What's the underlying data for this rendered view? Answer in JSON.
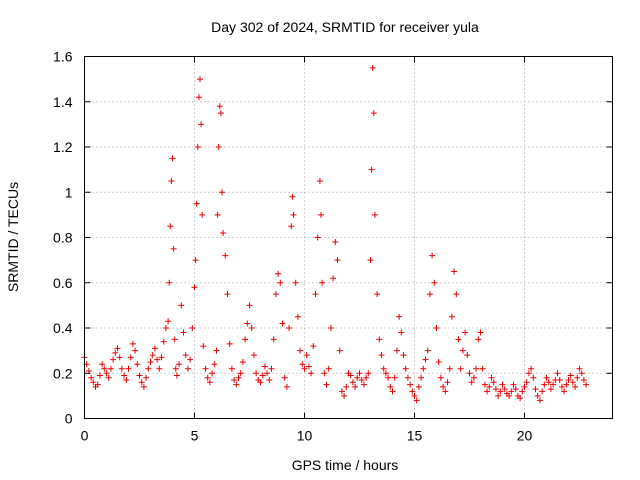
{
  "chart_data": {
    "type": "scatter",
    "title": "Day 302 of 2024, SRMTID for receiver yula",
    "xlabel": "GPS time / hours",
    "ylabel": "SRMTID / TECUs",
    "xlim": [
      0,
      24
    ],
    "ylim": [
      0,
      1.6
    ],
    "grid": true,
    "marker": "+",
    "series_color": "#ee0000",
    "x_ticks": [
      {
        "value": 0,
        "label": "0"
      },
      {
        "value": 5,
        "label": "5"
      },
      {
        "value": 10,
        "label": "10"
      },
      {
        "value": 15,
        "label": "15"
      },
      {
        "value": 20,
        "label": "20"
      }
    ],
    "y_ticks": [
      {
        "value": 0,
        "label": "0"
      },
      {
        "value": 0.2,
        "label": "0.2"
      },
      {
        "value": 0.4,
        "label": "0.4"
      },
      {
        "value": 0.6,
        "label": "0.6"
      },
      {
        "value": 0.8,
        "label": "0.8"
      },
      {
        "value": 1.0,
        "label": "1"
      },
      {
        "value": 1.2,
        "label": "1.2"
      },
      {
        "value": 1.4,
        "label": "1.4"
      },
      {
        "value": 1.6,
        "label": "1.6"
      }
    ],
    "series": [
      {
        "name": "SRMTID",
        "points": [
          [
            0.0,
            0.27
          ],
          [
            0.1,
            0.24
          ],
          [
            0.2,
            0.21
          ],
          [
            0.3,
            0.18
          ],
          [
            0.4,
            0.16
          ],
          [
            0.5,
            0.14
          ],
          [
            0.6,
            0.15
          ],
          [
            0.7,
            0.19
          ],
          [
            0.8,
            0.24
          ],
          [
            0.9,
            0.22
          ],
          [
            1.0,
            0.2
          ],
          [
            1.1,
            0.18
          ],
          [
            1.2,
            0.22
          ],
          [
            1.3,
            0.26
          ],
          [
            1.4,
            0.29
          ],
          [
            1.5,
            0.31
          ],
          [
            1.6,
            0.27
          ],
          [
            1.7,
            0.22
          ],
          [
            1.8,
            0.19
          ],
          [
            1.9,
            0.17
          ],
          [
            2.0,
            0.22
          ],
          [
            2.1,
            0.27
          ],
          [
            2.2,
            0.33
          ],
          [
            2.3,
            0.3
          ],
          [
            2.4,
            0.24
          ],
          [
            2.5,
            0.19
          ],
          [
            2.6,
            0.16
          ],
          [
            2.7,
            0.14
          ],
          [
            2.8,
            0.18
          ],
          [
            2.9,
            0.22
          ],
          [
            3.0,
            0.25
          ],
          [
            3.1,
            0.28
          ],
          [
            3.2,
            0.31
          ],
          [
            3.3,
            0.26
          ],
          [
            3.4,
            0.22
          ],
          [
            3.5,
            0.27
          ],
          [
            3.6,
            0.34
          ],
          [
            3.7,
            0.4
          ],
          [
            3.8,
            0.43
          ],
          [
            3.85,
            0.6
          ],
          [
            3.9,
            0.85
          ],
          [
            3.95,
            1.05
          ],
          [
            4.0,
            1.15
          ],
          [
            4.05,
            0.75
          ],
          [
            4.1,
            0.35
          ],
          [
            4.15,
            0.22
          ],
          [
            4.2,
            0.19
          ],
          [
            4.3,
            0.24
          ],
          [
            4.4,
            0.5
          ],
          [
            4.5,
            0.38
          ],
          [
            4.6,
            0.28
          ],
          [
            4.7,
            0.22
          ],
          [
            4.8,
            0.26
          ],
          [
            4.9,
            0.4
          ],
          [
            5.0,
            0.58
          ],
          [
            5.05,
            0.7
          ],
          [
            5.1,
            0.95
          ],
          [
            5.15,
            1.2
          ],
          [
            5.2,
            1.42
          ],
          [
            5.25,
            1.5
          ],
          [
            5.3,
            1.3
          ],
          [
            5.35,
            0.9
          ],
          [
            5.4,
            0.32
          ],
          [
            5.5,
            0.22
          ],
          [
            5.6,
            0.18
          ],
          [
            5.7,
            0.16
          ],
          [
            5.8,
            0.2
          ],
          [
            5.9,
            0.24
          ],
          [
            6.0,
            0.3
          ],
          [
            6.05,
            0.9
          ],
          [
            6.1,
            1.2
          ],
          [
            6.15,
            1.38
          ],
          [
            6.2,
            1.35
          ],
          [
            6.25,
            1.0
          ],
          [
            6.3,
            0.82
          ],
          [
            6.4,
            0.72
          ],
          [
            6.5,
            0.55
          ],
          [
            6.6,
            0.33
          ],
          [
            6.7,
            0.22
          ],
          [
            6.8,
            0.17
          ],
          [
            6.9,
            0.15
          ],
          [
            7.0,
            0.18
          ],
          [
            7.1,
            0.2
          ],
          [
            7.2,
            0.25
          ],
          [
            7.3,
            0.35
          ],
          [
            7.4,
            0.42
          ],
          [
            7.5,
            0.5
          ],
          [
            7.6,
            0.4
          ],
          [
            7.7,
            0.28
          ],
          [
            7.8,
            0.2
          ],
          [
            7.9,
            0.17
          ],
          [
            8.0,
            0.16
          ],
          [
            8.1,
            0.19
          ],
          [
            8.2,
            0.23
          ],
          [
            8.3,
            0.2
          ],
          [
            8.4,
            0.17
          ],
          [
            8.5,
            0.22
          ],
          [
            8.6,
            0.35
          ],
          [
            8.7,
            0.55
          ],
          [
            8.8,
            0.64
          ],
          [
            8.9,
            0.6
          ],
          [
            9.0,
            0.42
          ],
          [
            9.1,
            0.18
          ],
          [
            9.2,
            0.14
          ],
          [
            9.3,
            0.4
          ],
          [
            9.4,
            0.85
          ],
          [
            9.45,
            0.98
          ],
          [
            9.5,
            0.9
          ],
          [
            9.6,
            0.6
          ],
          [
            9.7,
            0.45
          ],
          [
            9.8,
            0.3
          ],
          [
            9.9,
            0.24
          ],
          [
            10.0,
            0.22
          ],
          [
            10.1,
            0.28
          ],
          [
            10.2,
            0.23
          ],
          [
            10.3,
            0.2
          ],
          [
            10.4,
            0.32
          ],
          [
            10.5,
            0.55
          ],
          [
            10.6,
            0.8
          ],
          [
            10.7,
            1.05
          ],
          [
            10.75,
            0.9
          ],
          [
            10.8,
            0.6
          ],
          [
            10.9,
            0.2
          ],
          [
            11.0,
            0.15
          ],
          [
            11.1,
            0.22
          ],
          [
            11.2,
            0.4
          ],
          [
            11.3,
            0.62
          ],
          [
            11.4,
            0.78
          ],
          [
            11.5,
            0.7
          ],
          [
            11.6,
            0.3
          ],
          [
            11.7,
            0.12
          ],
          [
            11.8,
            0.1
          ],
          [
            11.9,
            0.14
          ],
          [
            12.0,
            0.2
          ],
          [
            12.1,
            0.19
          ],
          [
            12.2,
            0.16
          ],
          [
            12.3,
            0.14
          ],
          [
            12.4,
            0.18
          ],
          [
            12.5,
            0.2
          ],
          [
            12.6,
            0.17
          ],
          [
            12.7,
            0.15
          ],
          [
            12.8,
            0.18
          ],
          [
            12.9,
            0.2
          ],
          [
            13.0,
            0.7
          ],
          [
            13.05,
            1.1
          ],
          [
            13.1,
            1.55
          ],
          [
            13.15,
            1.35
          ],
          [
            13.2,
            0.9
          ],
          [
            13.3,
            0.55
          ],
          [
            13.4,
            0.35
          ],
          [
            13.5,
            0.28
          ],
          [
            13.6,
            0.22
          ],
          [
            13.7,
            0.2
          ],
          [
            13.8,
            0.18
          ],
          [
            13.9,
            0.14
          ],
          [
            14.0,
            0.12
          ],
          [
            14.1,
            0.18
          ],
          [
            14.2,
            0.3
          ],
          [
            14.3,
            0.45
          ],
          [
            14.4,
            0.38
          ],
          [
            14.5,
            0.28
          ],
          [
            14.6,
            0.22
          ],
          [
            14.7,
            0.18
          ],
          [
            14.8,
            0.15
          ],
          [
            14.9,
            0.12
          ],
          [
            15.0,
            0.1
          ],
          [
            15.1,
            0.08
          ],
          [
            15.2,
            0.14
          ],
          [
            15.3,
            0.18
          ],
          [
            15.4,
            0.22
          ],
          [
            15.5,
            0.26
          ],
          [
            15.6,
            0.3
          ],
          [
            15.7,
            0.55
          ],
          [
            15.8,
            0.72
          ],
          [
            15.9,
            0.6
          ],
          [
            16.0,
            0.4
          ],
          [
            16.1,
            0.25
          ],
          [
            16.2,
            0.18
          ],
          [
            16.3,
            0.14
          ],
          [
            16.4,
            0.12
          ],
          [
            16.5,
            0.16
          ],
          [
            16.6,
            0.22
          ],
          [
            16.7,
            0.45
          ],
          [
            16.8,
            0.65
          ],
          [
            16.9,
            0.55
          ],
          [
            17.0,
            0.35
          ],
          [
            17.1,
            0.22
          ],
          [
            17.2,
            0.3
          ],
          [
            17.3,
            0.38
          ],
          [
            17.4,
            0.28
          ],
          [
            17.5,
            0.2
          ],
          [
            17.6,
            0.16
          ],
          [
            17.7,
            0.18
          ],
          [
            17.8,
            0.22
          ],
          [
            17.9,
            0.35
          ],
          [
            18.0,
            0.38
          ],
          [
            18.1,
            0.22
          ],
          [
            18.2,
            0.15
          ],
          [
            18.3,
            0.12
          ],
          [
            18.4,
            0.14
          ],
          [
            18.5,
            0.18
          ],
          [
            18.6,
            0.16
          ],
          [
            18.7,
            0.13
          ],
          [
            18.8,
            0.1
          ],
          [
            18.9,
            0.12
          ],
          [
            19.0,
            0.15
          ],
          [
            19.1,
            0.13
          ],
          [
            19.2,
            0.11
          ],
          [
            19.3,
            0.1
          ],
          [
            19.4,
            0.12
          ],
          [
            19.5,
            0.15
          ],
          [
            19.6,
            0.13
          ],
          [
            19.7,
            0.1
          ],
          [
            19.8,
            0.09
          ],
          [
            19.9,
            0.12
          ],
          [
            20.0,
            0.14
          ],
          [
            20.1,
            0.16
          ],
          [
            20.2,
            0.2
          ],
          [
            20.3,
            0.22
          ],
          [
            20.4,
            0.18
          ],
          [
            20.5,
            0.13
          ],
          [
            20.6,
            0.1
          ],
          [
            20.7,
            0.08
          ],
          [
            20.8,
            0.12
          ],
          [
            20.9,
            0.15
          ],
          [
            21.0,
            0.18
          ],
          [
            21.1,
            0.16
          ],
          [
            21.2,
            0.13
          ],
          [
            21.3,
            0.15
          ],
          [
            21.4,
            0.17
          ],
          [
            21.5,
            0.2
          ],
          [
            21.6,
            0.17
          ],
          [
            21.7,
            0.14
          ],
          [
            21.8,
            0.12
          ],
          [
            21.9,
            0.15
          ],
          [
            22.0,
            0.17
          ],
          [
            22.1,
            0.19
          ],
          [
            22.2,
            0.16
          ],
          [
            22.3,
            0.14
          ],
          [
            22.4,
            0.18
          ],
          [
            22.5,
            0.22
          ],
          [
            22.6,
            0.2
          ],
          [
            22.7,
            0.17
          ],
          [
            22.8,
            0.15
          ]
        ]
      }
    ]
  }
}
